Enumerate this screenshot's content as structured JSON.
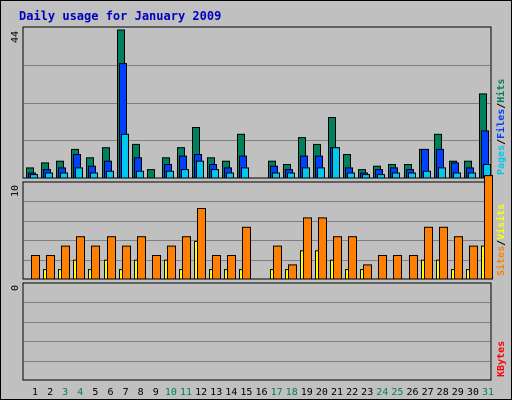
{
  "chart_data": {
    "type": "bar",
    "title": "Daily usage for January 2009",
    "colors": {
      "title": "#0000c0",
      "panel_bg": "#c0c0c0",
      "grid": "#808080",
      "hits": "#00805c",
      "files": "#0040ff",
      "pages": "#00c8f0",
      "visits": "#ffff00",
      "sites": "#ff8000",
      "kbytes": "#ff0000",
      "weekday": "#000000",
      "weekend": "#00805c"
    },
    "days": [
      "1",
      "2",
      "3",
      "4",
      "5",
      "6",
      "7",
      "8",
      "9",
      "10",
      "11",
      "12",
      "13",
      "14",
      "15",
      "16",
      "17",
      "18",
      "19",
      "20",
      "21",
      "22",
      "23",
      "24",
      "25",
      "26",
      "27",
      "28",
      "29",
      "30",
      "31"
    ],
    "weekend_days": [
      "3",
      "4",
      "10",
      "11",
      "17",
      "18",
      "24",
      "25",
      "31"
    ],
    "top_panel": {
      "ymax_label": "44",
      "ymax": 44,
      "series": [
        {
          "name": "Hits",
          "values": [
            3,
            4.5,
            5,
            8.5,
            6,
            9,
            44,
            10,
            2.5,
            6,
            9,
            15,
            6,
            5,
            13,
            0,
            5,
            4,
            12,
            10,
            18,
            7,
            2.5,
            3.5,
            4,
            4,
            8.5,
            13,
            5,
            5,
            25
          ]
        },
        {
          "name": "Files",
          "values": [
            1.5,
            2.5,
            3,
            7,
            3.5,
            5,
            34,
            6,
            0,
            4,
            6.5,
            7,
            4,
            3,
            6.5,
            0,
            3.5,
            2.5,
            6.5,
            6.5,
            9,
            3,
            1.5,
            2.5,
            3,
            2.5,
            8.5,
            8.5,
            4.5,
            3,
            14
          ]
        },
        {
          "name": "Pages",
          "values": [
            1,
            1.5,
            1.5,
            3,
            1.5,
            2,
            13,
            2,
            0,
            2,
            2.5,
            5,
            2.5,
            1.5,
            3,
            0,
            1.5,
            1.5,
            3,
            3,
            9,
            1.5,
            1,
            1,
            1.5,
            1.5,
            2,
            3,
            1.5,
            1.5,
            4
          ]
        }
      ],
      "legend": [
        "Pages",
        "/",
        "Files",
        "/",
        "Hits"
      ]
    },
    "middle_panel": {
      "ymax_label": "10",
      "ymax": 10,
      "series": [
        {
          "name": "Visits",
          "values": [
            0,
            1,
            1,
            2,
            1,
            2,
            1,
            2,
            0,
            2,
            1,
            4,
            1,
            1,
            1,
            0,
            1,
            1,
            3,
            3,
            2,
            1,
            1,
            0,
            0,
            0,
            2,
            2,
            1,
            1,
            3.5
          ]
        },
        {
          "name": "Sites",
          "values": [
            2.5,
            2.5,
            3.5,
            4.5,
            3.5,
            4.5,
            3.5,
            4.5,
            2.5,
            3.5,
            4.5,
            7.5,
            2.5,
            2.5,
            5.5,
            0,
            3.5,
            1.5,
            6.5,
            6.5,
            4.5,
            4.5,
            1.5,
            2.5,
            2.5,
            2.5,
            5.5,
            5.5,
            4.5,
            3.5,
            11
          ]
        }
      ],
      "legend": [
        "Sites",
        "/",
        "Visits"
      ]
    },
    "bottom_panel": {
      "ymax_label": "0",
      "ymax": 1,
      "series": [
        {
          "name": "KBytes",
          "values": [
            0,
            0,
            0,
            0,
            0,
            0,
            0,
            0,
            0,
            0,
            0,
            0,
            0,
            0,
            0,
            0,
            0,
            0,
            0,
            0,
            0,
            0,
            0,
            0,
            0,
            0,
            0,
            0,
            0,
            0,
            0
          ]
        }
      ],
      "legend": [
        "KBytes"
      ]
    }
  }
}
